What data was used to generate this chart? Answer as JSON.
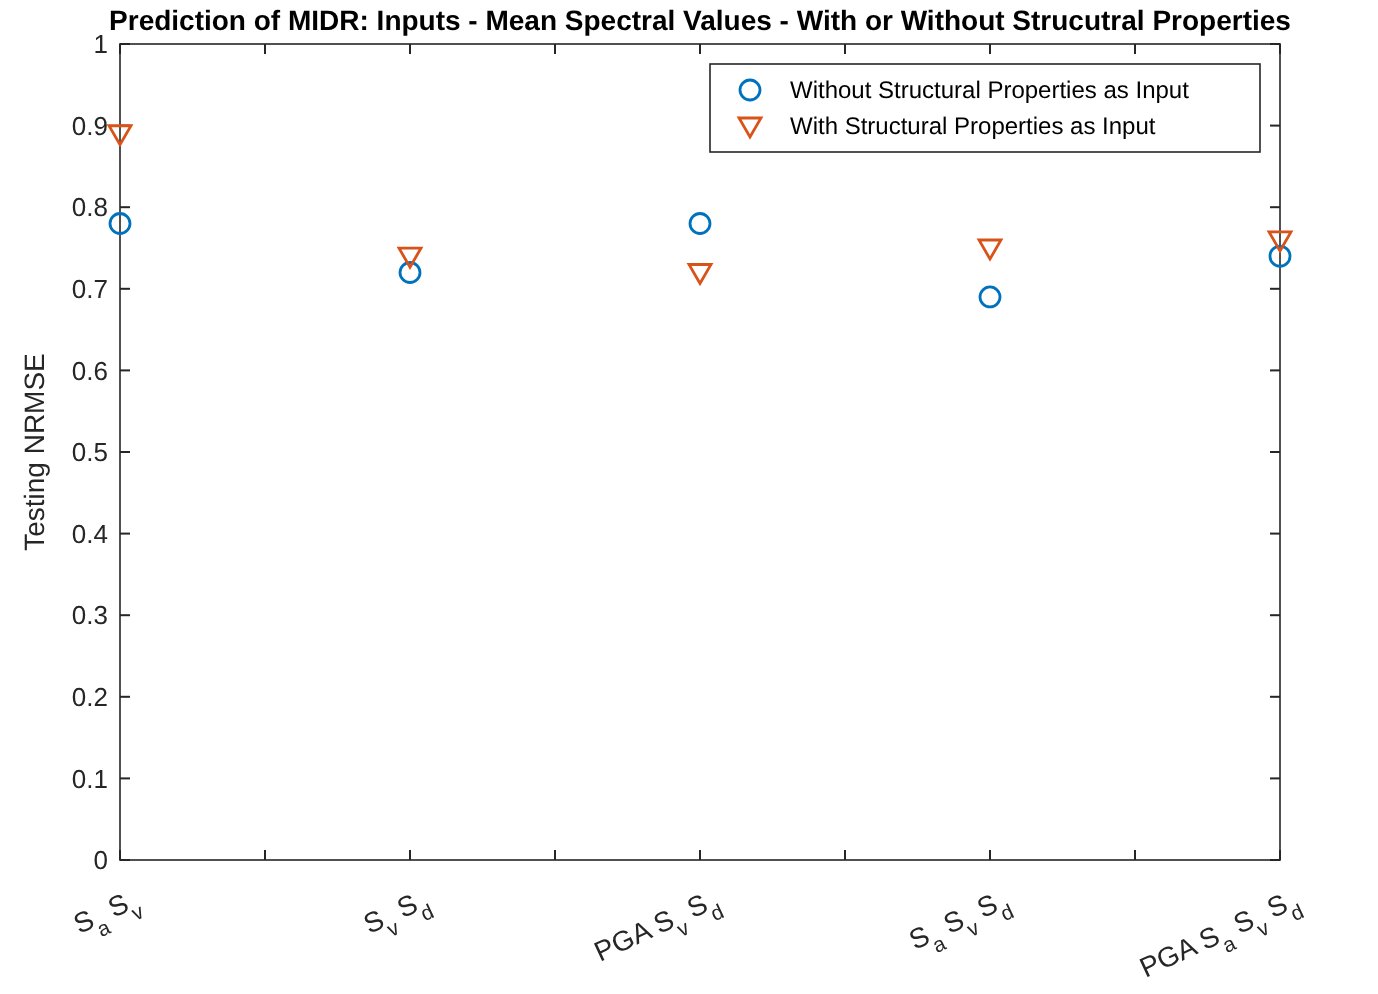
{
  "chart_data": {
    "type": "scatter",
    "title": "Prediction of MIDR: Inputs - Mean Spectral Values - With or Without Strucutral Properties",
    "ylabel": "Testing NRMSE",
    "categories": [
      "S$_{a}$ S$_{v}$",
      "S$_{v}$ S$_{d}$",
      "PGA S$_{v}$ S$_{d}$",
      "S$_{a}$ S$_{v}$ S$_{d}$",
      "PGA S$_{a}$ S$_{v}$ S$_{d}$"
    ],
    "ylim": [
      0,
      1
    ],
    "yticks": [
      0,
      0.1,
      0.2,
      0.3,
      0.4,
      0.5,
      0.6,
      0.7,
      0.8,
      0.9,
      1
    ],
    "legend": "top right",
    "series": [
      {
        "name": "Without Structural Properties as Input",
        "color": "#0072bd",
        "marker": "circle",
        "values": [
          0.78,
          0.72,
          0.78,
          0.69,
          0.74
        ]
      },
      {
        "name": "With Structural Properties as Input",
        "color": "#d95319",
        "marker": "triangle",
        "values": [
          0.89,
          0.74,
          0.72,
          0.75,
          0.76
        ]
      }
    ]
  }
}
